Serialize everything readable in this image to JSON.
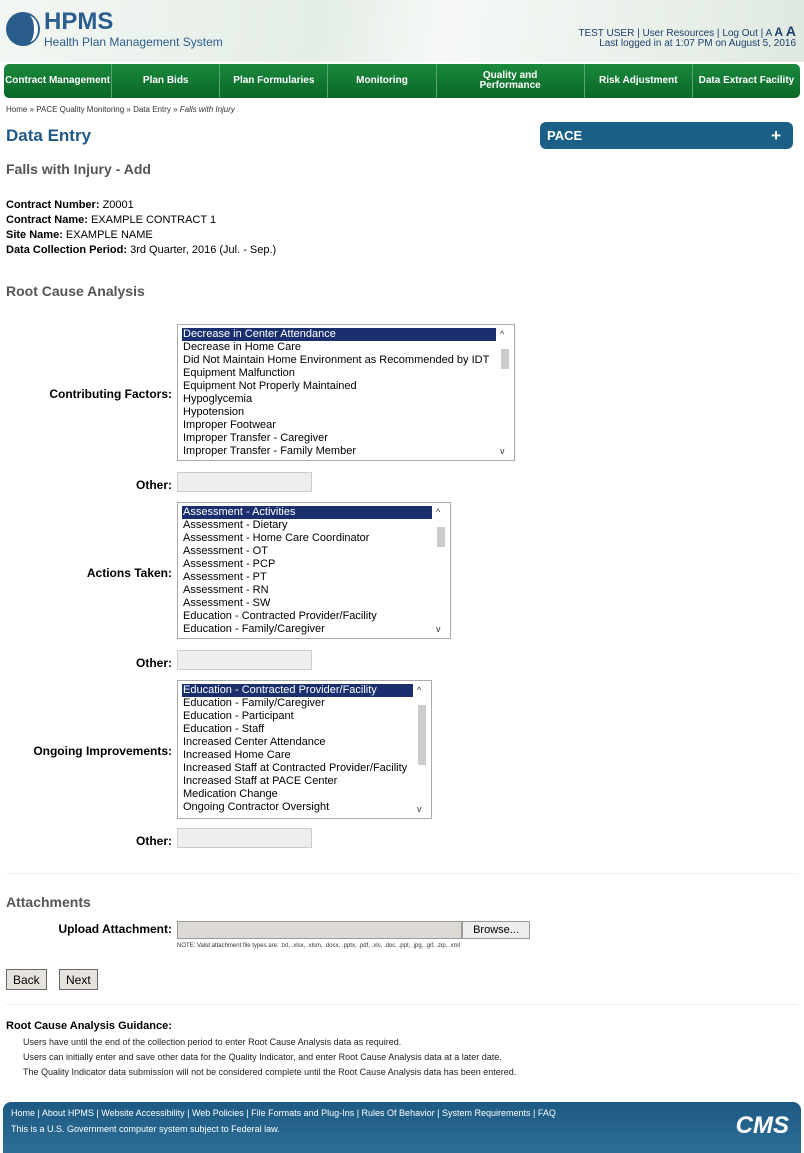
{
  "header": {
    "logo_title": "HPMS",
    "logo_subtitle": "Health Plan Management System",
    "user": "TEST USER",
    "user_resources": "User Resources",
    "logout": "Log Out",
    "font_small": "A",
    "font_medium": "A",
    "font_large": "A",
    "last_login": "Last logged in at 1:07 PM on August 5, 2016"
  },
  "nav": [
    "Contract Management",
    "Plan Bids",
    "Plan Formularies",
    "Monitoring",
    "Quality and Performance",
    "Risk Adjustment",
    "Data Extract Facility"
  ],
  "breadcrumb": {
    "home": "Home",
    "sep": "»",
    "pace": "PACE Quality Monitoring",
    "entry": "Data Entry",
    "current": "Falls with Injury"
  },
  "page": {
    "title": "Data Entry",
    "panel": "PACE",
    "panel_icon": "+",
    "subtitle": "Falls with Injury - Add"
  },
  "info": [
    {
      "label": "Contract Number:",
      "value": "Z0001"
    },
    {
      "label": "Contract Name:",
      "value": "EXAMPLE CONTRACT 1"
    },
    {
      "label": "Site Name:",
      "value": "EXAMPLE NAME"
    },
    {
      "label": "Data Collection Period:",
      "value": "3rd Quarter, 2016 (Jul. - Sep.)"
    }
  ],
  "rca": {
    "heading": "Root Cause Analysis",
    "other_label": "Other:",
    "contributing": {
      "label": "Contributing Factors:",
      "options": [
        "Decrease in Center Attendance",
        "Decrease in Home Care",
        "Did Not Maintain Home Environment as Recommended by IDT",
        "Equipment Malfunction",
        "Equipment Not Properly Maintained",
        "Hypoglycemia",
        "Hypotension",
        "Improper Footwear",
        "Improper Transfer - Caregiver",
        "Improper Transfer - Family Member"
      ],
      "selected": "Decrease in Center Attendance"
    },
    "actions": {
      "label": "Actions Taken:",
      "options": [
        "Assessment - Activities",
        "Assessment - Dietary",
        "Assessment - Home Care Coordinator",
        "Assessment - OT",
        "Assessment - PCP",
        "Assessment - PT",
        "Assessment - RN",
        "Assessment - SW",
        "Education - Contracted Provider/Facility",
        "Education - Family/Caregiver"
      ],
      "selected": "Assessment - Activities"
    },
    "improvements": {
      "label": "Ongoing Improvements:",
      "options": [
        "Education - Contracted Provider/Facility",
        "Education - Family/Caregiver",
        "Education - Participant",
        "Education - Staff",
        "Increased Center Attendance",
        "Increased Home Care",
        "Increased Staff at Contracted Provider/Facility",
        "Increased Staff at PACE Center",
        "Medication Change",
        "Ongoing Contractor Oversight"
      ],
      "selected": "Education - Contracted Provider/Facility"
    }
  },
  "attachments": {
    "heading": "Attachments",
    "label": "Upload Attachment:",
    "browse": "Browse...",
    "note": "NOTE: Valid attachment file types are: .txt, .xlsx, .xlsm, .docx, .pptx, .pdf, .xls, .doc, .ppt, .jpg, .gif, .zip, .xml"
  },
  "buttons": {
    "back": "Back",
    "next": "Next"
  },
  "guidance": {
    "title": "Root Cause Analysis Guidance:",
    "lines": [
      "Users have until the end of the collection period to enter Root Cause Analysis data as required.",
      "Users can initially enter and save other data for the Quality Indicator, and enter Root Cause Analysis data at a later date.",
      "The Quality Indicator data submission will not be considered complete until the Root Cause Analysis data has been entered."
    ]
  },
  "footer": {
    "links": [
      "Home",
      "About HPMS",
      "Website Accessibility",
      "Web Policies",
      "File Formats and Plug-Ins",
      "Rules Of Behavior",
      "System Requirements",
      "FAQ"
    ],
    "note": "This is a U.S. Government computer system subject to Federal law.",
    "logo": "CMS"
  }
}
